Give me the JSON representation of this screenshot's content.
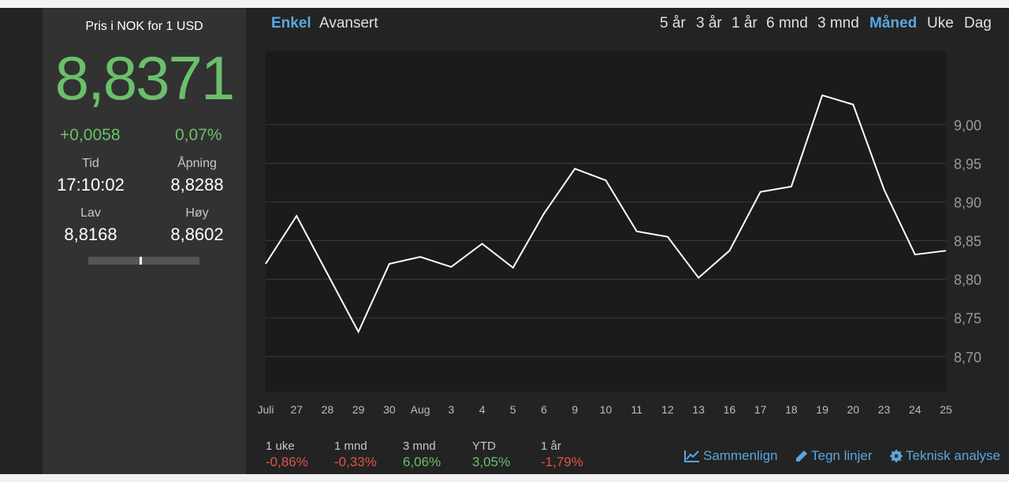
{
  "sidebar": {
    "title": "Pris i NOK for 1 USD",
    "price": "8,8371",
    "change_abs": "+0,0058",
    "change_pct": "0,07%",
    "time_label": "Tid",
    "time_value": "17:10:02",
    "open_label": "Åpning",
    "open_value": "8,8288",
    "low_label": "Lav",
    "low_value": "8,8168",
    "high_label": "Høy",
    "high_value": "8,8602",
    "day_range_position": 0.47
  },
  "view_tabs": [
    {
      "label": "Enkel",
      "active": true
    },
    {
      "label": "Avansert",
      "active": false
    }
  ],
  "period_tabs": [
    {
      "label": "5 år",
      "active": false
    },
    {
      "label": "3 år",
      "active": false
    },
    {
      "label": "1 år",
      "active": false
    },
    {
      "label": "6 mnd",
      "active": false
    },
    {
      "label": "3 mnd",
      "active": false
    },
    {
      "label": "Måned",
      "active": true
    },
    {
      "label": "Uke",
      "active": false
    },
    {
      "label": "Dag",
      "active": false
    }
  ],
  "performance": [
    {
      "label": "1 uke",
      "value": "-0,86%",
      "trend": "neg"
    },
    {
      "label": "1 mnd",
      "value": "-0,33%",
      "trend": "neg"
    },
    {
      "label": "3 mnd",
      "value": "6,06%",
      "trend": "pos"
    },
    {
      "label": "YTD",
      "value": "3,05%",
      "trend": "pos"
    },
    {
      "label": "1 år",
      "value": "-1,79%",
      "trend": "neg"
    }
  ],
  "tools": [
    {
      "label": "Sammenlign",
      "icon": "line-chart-icon"
    },
    {
      "label": "Tegn linjer",
      "icon": "pencil-icon"
    },
    {
      "label": "Teknisk analyse",
      "icon": "gear-icon"
    }
  ],
  "colors": {
    "accent": "#5aa6df",
    "positive": "#6bbf6b",
    "negative": "#e0534a",
    "line": "#ffffff"
  },
  "chart_data": {
    "type": "line",
    "x": [
      "Juli",
      "27",
      "28",
      "29",
      "30",
      "Aug",
      "3",
      "4",
      "5",
      "6",
      "9",
      "10",
      "11",
      "12",
      "13",
      "16",
      "17",
      "18",
      "19",
      "20",
      "23",
      "24",
      "25"
    ],
    "values": [
      8.82,
      8.882,
      8.807,
      8.732,
      8.82,
      8.829,
      8.816,
      8.846,
      8.815,
      8.885,
      8.943,
      8.928,
      8.862,
      8.855,
      8.802,
      8.837,
      8.913,
      8.92,
      9.038,
      9.026,
      8.916,
      8.832,
      8.837
    ],
    "yticks": [
      "9,00",
      "8,95",
      "8,90",
      "8,85",
      "8,80",
      "8,75",
      "8,70"
    ],
    "ytick_values": [
      9.0,
      8.95,
      8.9,
      8.85,
      8.8,
      8.75,
      8.7
    ],
    "ylim": [
      8.655,
      9.095
    ],
    "grid": true
  }
}
